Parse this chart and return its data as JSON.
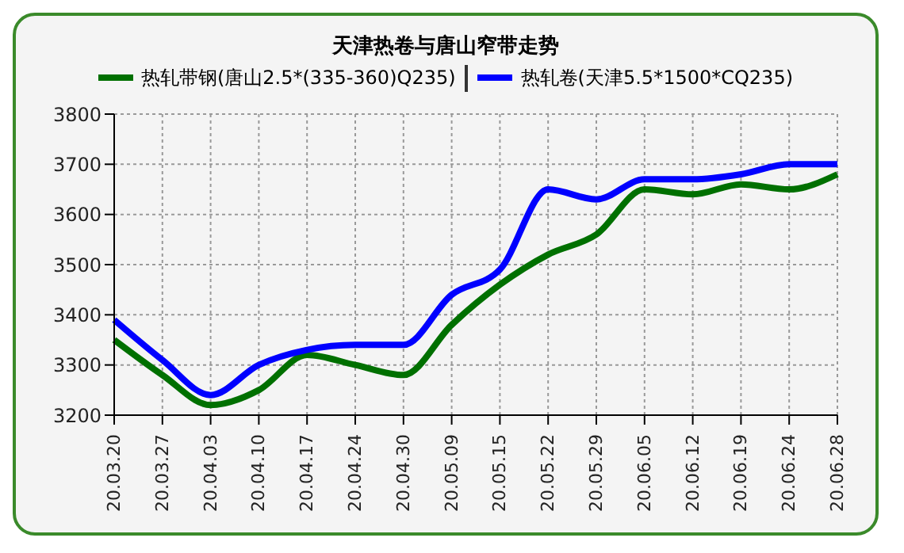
{
  "chart_data": {
    "type": "line",
    "title": "天津热卷与唐山窄带走势",
    "categories": [
      "20.03.20",
      "20.03.27",
      "20.04.03",
      "20.04.10",
      "20.04.17",
      "20.04.24",
      "20.04.30",
      "20.05.09",
      "20.05.15",
      "20.05.22",
      "20.05.29",
      "20.06.05",
      "20.06.12",
      "20.06.19",
      "20.06.24",
      "20.06.28"
    ],
    "series": [
      {
        "name": "热轧带钢(唐山2.5*(335-360)Q235)",
        "color": "#007000",
        "values": [
          3350,
          3280,
          3220,
          3250,
          3320,
          3300,
          3280,
          3380,
          3460,
          3520,
          3560,
          3650,
          3640,
          3660,
          3650,
          3680
        ]
      },
      {
        "name": "热轧卷(天津5.5*1500*CQ235)",
        "color": "#0000ff",
        "values": [
          3390,
          3310,
          3240,
          3300,
          3330,
          3340,
          3340,
          3440,
          3490,
          3650,
          3630,
          3670,
          3670,
          3680,
          3700,
          3700
        ]
      }
    ],
    "ylim": [
      3200,
      3800
    ],
    "yticks": [
      3200,
      3300,
      3400,
      3500,
      3600,
      3700,
      3800
    ],
    "grid": true,
    "legend": "top",
    "marker": "none",
    "line_style": "solid"
  }
}
